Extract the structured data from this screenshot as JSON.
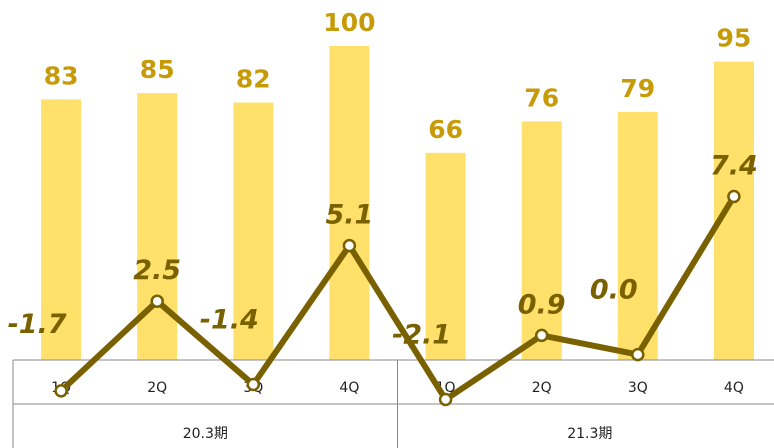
{
  "chart_data": {
    "type": "bar",
    "categories": [
      "1Q",
      "2Q",
      "3Q",
      "4Q",
      "1Q",
      "2Q",
      "3Q",
      "4Q"
    ],
    "groups": [
      {
        "label": "20.3期",
        "categories": [
          "1Q",
          "2Q",
          "3Q",
          "4Q"
        ]
      },
      {
        "label": "21.3期",
        "categories": [
          "1Q",
          "2Q",
          "3Q",
          "4Q"
        ]
      }
    ],
    "series": [
      {
        "type": "bar",
        "values": [
          83,
          85,
          82,
          100,
          66,
          76,
          79,
          95
        ],
        "labels": [
          "83",
          "85",
          "82",
          "100",
          "66",
          "76",
          "79",
          "95"
        ],
        "color": "#FFE06B",
        "label_color": "#C79A08"
      },
      {
        "type": "line",
        "values": [
          -1.7,
          2.5,
          -1.4,
          5.1,
          -2.1,
          0.9,
          0.0,
          7.4
        ],
        "labels": [
          "-1.7",
          "2.5",
          "-1.4",
          "5.1",
          "-2.1",
          "0.9",
          "0.0",
          "7.4"
        ],
        "color": "#7A6100"
      }
    ],
    "title": "",
    "xlabel": "",
    "ylabel": "",
    "bar_ylim": [
      0,
      100
    ],
    "line_ylim": [
      -2.5,
      8.5
    ],
    "grid": false,
    "legend": "none"
  }
}
